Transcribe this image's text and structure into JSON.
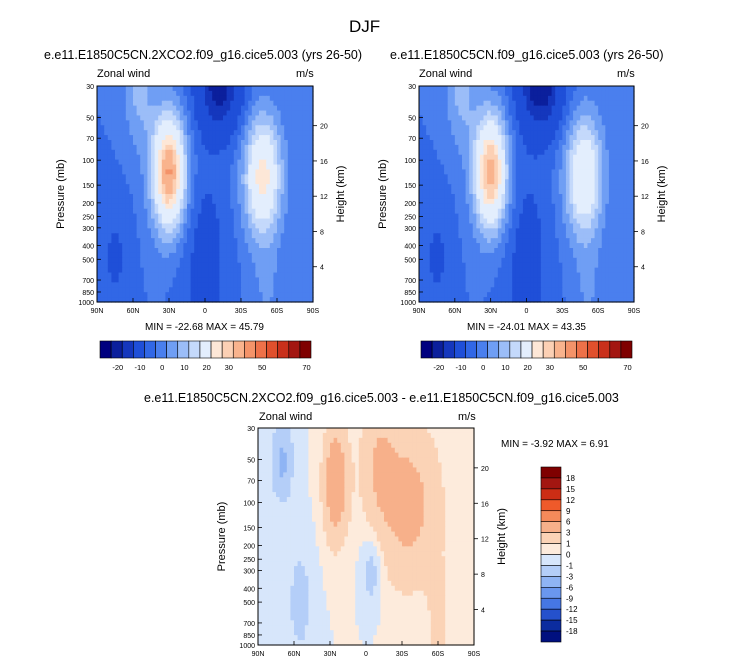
{
  "figure_title": "DJF",
  "chart_data": [
    {
      "type": "heatmap",
      "title": "e.e11.E1850C5CN.2XCO2.f09_g16.cice5.003 (yrs 26-50)",
      "left_label": "Zonal wind",
      "right_label": "m/s",
      "xlabel": "",
      "ylabel": "Pressure (mb)",
      "ylabel_right": "Height (km)",
      "x_ticks": [
        "90N",
        "60N",
        "30N",
        "0",
        "30S",
        "60S",
        "90S"
      ],
      "y_ticks": [
        "30",
        "50",
        "70",
        "100",
        "150",
        "200",
        "250",
        "300",
        "400",
        "500",
        "700",
        "850",
        "1000"
      ],
      "height_ticks": [
        "20",
        "16",
        "12",
        "8",
        "4"
      ],
      "stats": "MIN = -22.68  MAX = 45.79",
      "min": -22.68,
      "max": 45.79,
      "contour_levels": [
        -25,
        -20,
        -15,
        -10,
        -5,
        0,
        5,
        10,
        15,
        20,
        25,
        30,
        35,
        40,
        45,
        50,
        55,
        60,
        65,
        70,
        75
      ],
      "colorbar_labels": [
        "-20",
        "-10",
        "0",
        "10",
        "20",
        "30",
        "50",
        "70"
      ]
    },
    {
      "type": "heatmap",
      "title": "e.e11.E1850C5CN.f09_g16.cice5.003 (yrs 26-50)",
      "left_label": "Zonal wind",
      "right_label": "m/s",
      "xlabel": "",
      "ylabel": "Pressure (mb)",
      "ylabel_right": "Height (km)",
      "x_ticks": [
        "90N",
        "60N",
        "30N",
        "0",
        "30S",
        "60S",
        "90S"
      ],
      "y_ticks": [
        "30",
        "50",
        "70",
        "100",
        "150",
        "200",
        "250",
        "300",
        "400",
        "500",
        "700",
        "850",
        "1000"
      ],
      "height_ticks": [
        "20",
        "16",
        "12",
        "8",
        "4"
      ],
      "stats": "MIN = -24.01  MAX = 43.35",
      "min": -24.01,
      "max": 43.35,
      "contour_levels": [
        -25,
        -20,
        -15,
        -10,
        -5,
        0,
        5,
        10,
        15,
        20,
        25,
        30,
        35,
        40,
        45,
        50,
        55,
        60,
        65,
        70,
        75
      ],
      "colorbar_labels": [
        "-20",
        "-10",
        "0",
        "10",
        "20",
        "30",
        "50",
        "70"
      ]
    },
    {
      "type": "heatmap",
      "title": "e.e11.E1850C5CN.2XCO2.f09_g16.cice5.003 - e.e11.E1850C5CN.f09_g16.cice5.003",
      "left_label": "Zonal wind",
      "right_label": "m/s",
      "xlabel": "",
      "ylabel": "Pressure (mb)",
      "ylabel_right": "Height (km)",
      "x_ticks": [
        "90N",
        "60N",
        "30N",
        "0",
        "30S",
        "60S",
        "90S"
      ],
      "y_ticks": [
        "30",
        "50",
        "70",
        "100",
        "150",
        "200",
        "250",
        "300",
        "400",
        "500",
        "700",
        "850",
        "1000"
      ],
      "height_ticks": [
        "20",
        "16",
        "12",
        "8",
        "4"
      ],
      "stats": "MIN = -3.92  MAX =  6.91",
      "min": -3.92,
      "max": 6.91,
      "contour_levels": [
        -18,
        -15,
        -12,
        -9,
        -6,
        -3,
        -1,
        0,
        1,
        3,
        6,
        9,
        12,
        15,
        18
      ],
      "colorbar_labels": [
        "18",
        "15",
        "12",
        "9",
        "6",
        "3",
        "1",
        "0",
        "-1",
        "-3",
        "-6",
        "-9",
        "-12",
        "-15",
        "-18"
      ]
    }
  ],
  "colors": {
    "full_field_scale": [
      "#00007f",
      "#0b1f9c",
      "#1537bd",
      "#1f4fd8",
      "#3167e6",
      "#4a7fee",
      "#6f9ef4",
      "#9bbdf8",
      "#c4d9fb",
      "#e3eefd",
      "#fde7d7",
      "#fcd0b4",
      "#f9b38d",
      "#f49369",
      "#ee7149",
      "#e0502d",
      "#c9301b",
      "#a31611",
      "#7f0000"
    ],
    "anomaly_scale": [
      "#7f0000",
      "#a31611",
      "#cc2d15",
      "#ef5a2a",
      "#f58a5a",
      "#f7b08a",
      "#fbd3b6",
      "#fdebdc",
      "#d7e6fb",
      "#b4cef8",
      "#8fb4f4",
      "#6a97ef",
      "#4677e4",
      "#2551cc",
      "#0b2c9f",
      "#00107f"
    ],
    "frame": "#000000"
  }
}
